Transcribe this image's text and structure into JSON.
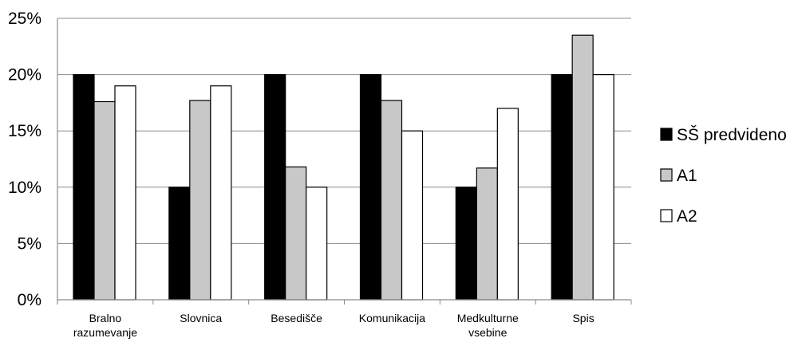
{
  "chart_data": {
    "type": "bar",
    "categories": [
      [
        "Bralno",
        "razumevanje"
      ],
      [
        "Slovnica"
      ],
      [
        "Besedišče"
      ],
      [
        "Komunikacija"
      ],
      [
        "Medkulturne",
        "vsebine"
      ],
      [
        "Spis"
      ]
    ],
    "series": [
      {
        "name": "SŠ predvideno",
        "color": "#000000",
        "values": [
          20,
          10,
          20,
          20,
          10,
          20
        ]
      },
      {
        "name": "A1",
        "color": "#c8c8c8",
        "values": [
          17.6,
          17.7,
          11.8,
          17.7,
          11.7,
          23.5
        ]
      },
      {
        "name": "A2",
        "color": "#ffffff",
        "values": [
          19,
          19,
          10,
          15,
          17,
          20
        ]
      }
    ],
    "yticks": [
      "0%",
      "5%",
      "10%",
      "15%",
      "20%",
      "25%"
    ],
    "ylim": [
      0,
      25
    ],
    "grid": true,
    "legend_position": "right"
  }
}
